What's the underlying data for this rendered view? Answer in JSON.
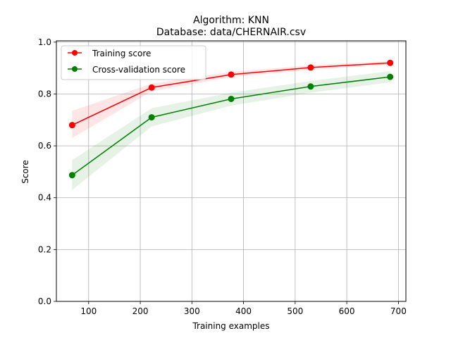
{
  "chart_data": {
    "type": "line",
    "title_line1": "Algorithm: KNN",
    "title_line2": "Database: data/CHERNAIR.csv",
    "xlabel": "Training examples",
    "ylabel": "Score",
    "xlim": [
      37.5,
      714.5
    ],
    "ylim": [
      0.0,
      1.005
    ],
    "xticks": [
      100,
      200,
      300,
      400,
      500,
      600,
      700
    ],
    "xtick_labels": [
      "100",
      "200",
      "300",
      "400",
      "500",
      "600",
      "700"
    ],
    "yticks": [
      0.0,
      0.2,
      0.4,
      0.6,
      0.8,
      1.0
    ],
    "ytick_labels": [
      "0.0",
      "0.2",
      "0.4",
      "0.6",
      "0.8",
      "1.0"
    ],
    "grid": true,
    "legend_position": "top-left",
    "x": [
      68,
      222,
      376,
      530,
      684
    ],
    "series": [
      {
        "name": "Training score",
        "color": "#ff0000",
        "values": [
          0.68,
          0.825,
          0.875,
          0.902,
          0.92
        ],
        "band_lower": [
          0.63,
          0.81,
          0.865,
          0.893,
          0.913
        ],
        "band_upper": [
          0.735,
          0.84,
          0.885,
          0.911,
          0.927
        ]
      },
      {
        "name": "Cross-validation score",
        "color": "#008000",
        "values": [
          0.487,
          0.71,
          0.781,
          0.829,
          0.866
        ],
        "band_lower": [
          0.43,
          0.675,
          0.755,
          0.805,
          0.845
        ],
        "band_upper": [
          0.545,
          0.745,
          0.805,
          0.85,
          0.888
        ]
      }
    ]
  }
}
